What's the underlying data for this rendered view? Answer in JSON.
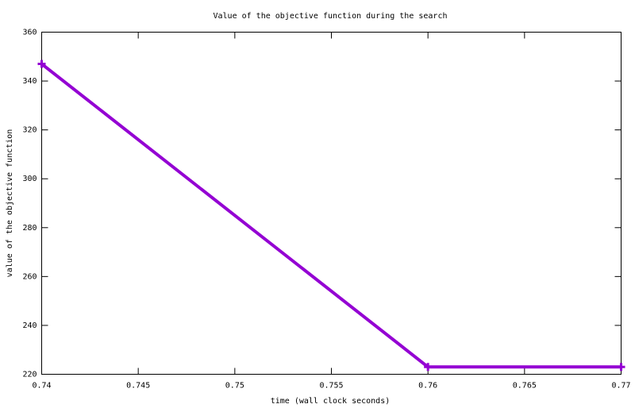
{
  "chart_data": {
    "type": "line",
    "title": "Value of the objective function during the search",
    "xlabel": "time (wall clock seconds)",
    "ylabel": "value of the objective function",
    "x": [
      0.74,
      0.76,
      0.77
    ],
    "values": [
      347,
      223,
      223
    ],
    "color": "#9400d3",
    "xlim": [
      0.74,
      0.77
    ],
    "xticks": [
      0.74,
      0.745,
      0.75,
      0.755,
      0.76,
      0.765,
      0.77
    ],
    "ylim": [
      220,
      360
    ],
    "yticks": [
      220,
      240,
      260,
      280,
      300,
      320,
      340,
      360
    ]
  }
}
